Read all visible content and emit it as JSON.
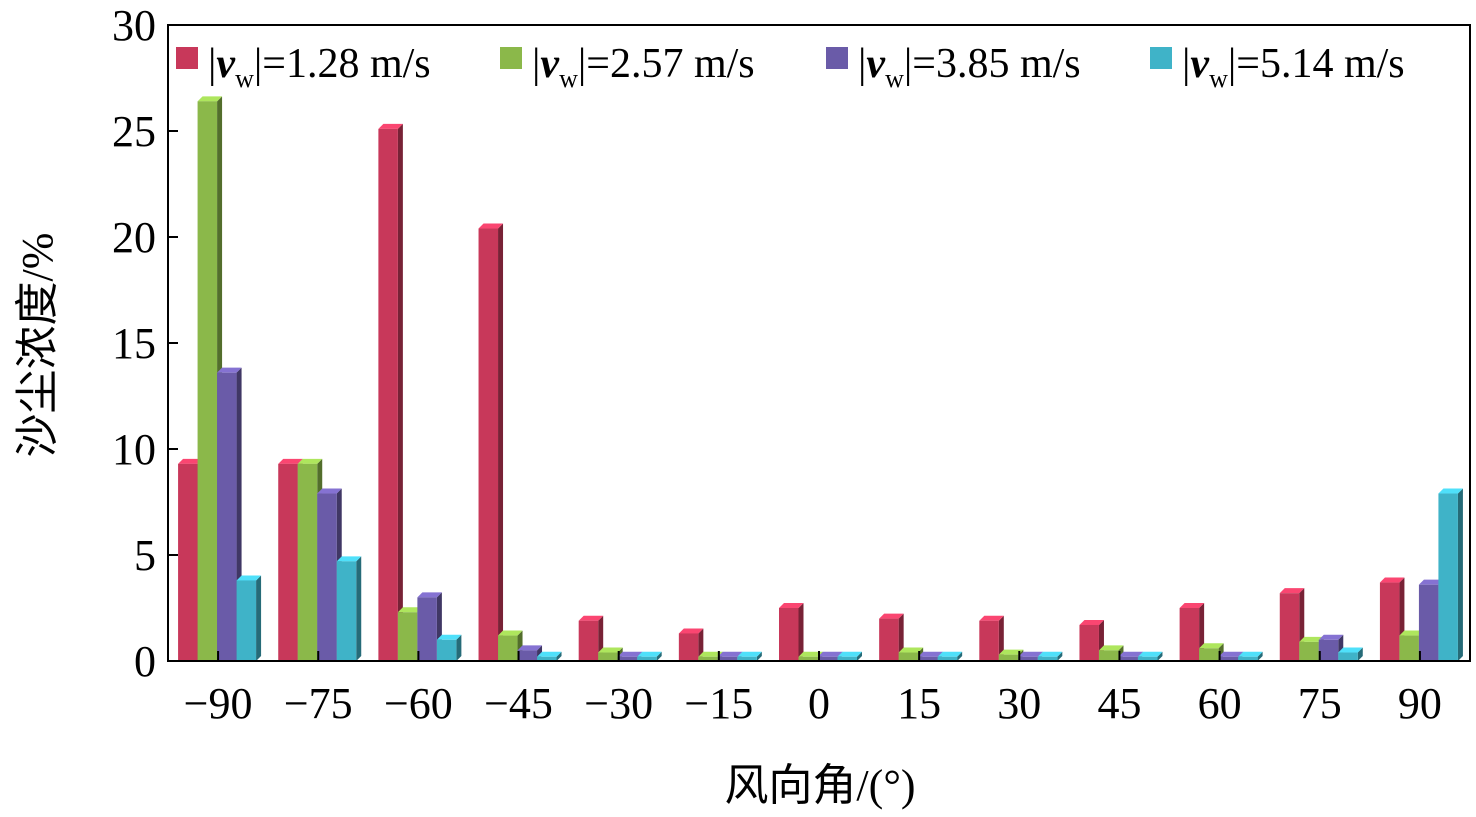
{
  "chart_data": {
    "type": "bar",
    "title": "",
    "xlabel": "风向角/(°)",
    "ylabel": "沙尘浓度/%",
    "ylim": [
      0,
      30
    ],
    "yticks": [
      "0",
      "5",
      "10",
      "15",
      "20",
      "25",
      "30"
    ],
    "categories": [
      "−90",
      "−75",
      "−60",
      "−45",
      "−30",
      "−15",
      "0",
      "15",
      "30",
      "45",
      "60",
      "75",
      "90"
    ],
    "legend_position": "top",
    "series": [
      {
        "name_prefix": "|",
        "name_var": "v",
        "name_sub": "w",
        "name_suffix": "|=1.28 m/s",
        "color": "#c8385a",
        "values": [
          9.3,
          9.3,
          25.1,
          20.4,
          1.9,
          1.3,
          2.5,
          2.0,
          1.9,
          1.7,
          2.5,
          3.2,
          3.7
        ]
      },
      {
        "name_prefix": "|",
        "name_var": "v",
        "name_sub": "w",
        "name_suffix": "|=2.57 m/s",
        "color": "#8bb84a",
        "values": [
          26.4,
          9.3,
          2.3,
          1.2,
          0.4,
          0.2,
          0.2,
          0.4,
          0.3,
          0.5,
          0.6,
          0.9,
          1.2
        ]
      },
      {
        "name_prefix": "|",
        "name_var": "v",
        "name_sub": "w",
        "name_suffix": "|=3.85 m/s",
        "color": "#6a5ba8",
        "values": [
          13.6,
          7.9,
          3.0,
          0.5,
          0.2,
          0.2,
          0.2,
          0.2,
          0.2,
          0.2,
          0.2,
          1.0,
          3.6
        ]
      },
      {
        "name_prefix": "|",
        "name_var": "v",
        "name_sub": "w",
        "name_suffix": "|=5.14 m/s",
        "color": "#3fb3c8",
        "values": [
          3.8,
          4.7,
          1.0,
          0.2,
          0.2,
          0.2,
          0.2,
          0.2,
          0.2,
          0.2,
          0.2,
          0.4,
          7.9
        ]
      }
    ]
  }
}
